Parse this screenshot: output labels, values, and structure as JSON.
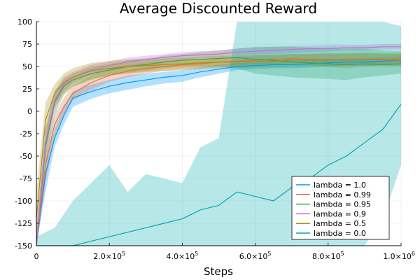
{
  "chart_data": {
    "type": "line",
    "title": "Average Discounted Reward",
    "xlabel": "Steps",
    "ylabel": "",
    "xlim": [
      0,
      1000000
    ],
    "ylim": [
      -150,
      100
    ],
    "grid": true,
    "legend_position": "bottom-right",
    "x_ticks": [
      {
        "value": 0,
        "mantissa": "0",
        "exponent": ""
      },
      {
        "value": 200000,
        "mantissa": "2.0×10",
        "exponent": "5"
      },
      {
        "value": 400000,
        "mantissa": "4.0×10",
        "exponent": "5"
      },
      {
        "value": 600000,
        "mantissa": "6.0×10",
        "exponent": "5"
      },
      {
        "value": 800000,
        "mantissa": "8.0×10",
        "exponent": "5"
      },
      {
        "value": 1000000,
        "mantissa": "1.0×10",
        "exponent": "6"
      }
    ],
    "y_ticks": [
      {
        "value": -150,
        "label": "-150"
      },
      {
        "value": -125,
        "label": "-125"
      },
      {
        "value": -100,
        "label": "-100"
      },
      {
        "value": -75,
        "label": "-75"
      },
      {
        "value": -50,
        "label": "-50"
      },
      {
        "value": -25,
        "label": "-25"
      },
      {
        "value": 0,
        "label": "0"
      },
      {
        "value": 25,
        "label": "25"
      },
      {
        "value": 50,
        "label": "50"
      },
      {
        "value": 75,
        "label": "75"
      },
      {
        "value": 100,
        "label": "100"
      }
    ],
    "series": [
      {
        "name": "lambda = 1.0",
        "color": "#009af9",
        "x": [
          0,
          25000,
          50000,
          75000,
          100000,
          150000,
          200000,
          250000,
          300000,
          350000,
          400000,
          450000,
          500000,
          550000,
          600000,
          650000,
          700000,
          750000,
          800000,
          850000,
          900000,
          950000,
          1000000
        ],
        "values": [
          -150,
          -70,
          -30,
          -5,
          15,
          22,
          28,
          32,
          35,
          38,
          40,
          44,
          47,
          50,
          51,
          52,
          52,
          53,
          54,
          55,
          55,
          56,
          57
        ],
        "lower": [
          -150,
          -90,
          -40,
          -15,
          5,
          14,
          20,
          24,
          28,
          31,
          33,
          38,
          42,
          46,
          47,
          48,
          48,
          49,
          50,
          51,
          51,
          52,
          53
        ],
        "upper": [
          -140,
          -55,
          -20,
          5,
          22,
          30,
          35,
          40,
          42,
          44,
          46,
          49,
          52,
          54,
          55,
          56,
          56,
          57,
          58,
          59,
          59,
          60,
          60
        ]
      },
      {
        "name": "lambda = 0.99",
        "color": "#e26f46",
        "x": [
          0,
          25000,
          50000,
          75000,
          100000,
          150000,
          200000,
          250000,
          300000,
          350000,
          400000,
          450000,
          500000,
          550000,
          600000,
          650000,
          700000,
          750000,
          800000,
          850000,
          900000,
          950000,
          1000000
        ],
        "values": [
          -150,
          -60,
          -15,
          5,
          20,
          32,
          40,
          45,
          48,
          50,
          52,
          53,
          55,
          56,
          57,
          58,
          59,
          58,
          58,
          57,
          58,
          57,
          57
        ],
        "lower": [
          -150,
          -80,
          -28,
          -5,
          12,
          24,
          33,
          38,
          42,
          45,
          47,
          48,
          50,
          51,
          52,
          53,
          54,
          52,
          50,
          48,
          50,
          50,
          50
        ],
        "upper": [
          -140,
          -45,
          -5,
          15,
          28,
          40,
          47,
          52,
          54,
          56,
          58,
          58,
          60,
          61,
          62,
          63,
          64,
          64,
          65,
          64,
          65,
          64,
          64
        ]
      },
      {
        "name": "lambda = 0.95",
        "color": "#3da44d",
        "x": [
          0,
          25000,
          50000,
          75000,
          100000,
          150000,
          200000,
          250000,
          300000,
          350000,
          400000,
          450000,
          500000,
          550000,
          600000,
          650000,
          700000,
          750000,
          800000,
          850000,
          900000,
          950000,
          1000000
        ],
        "values": [
          -150,
          -40,
          10,
          28,
          35,
          42,
          46,
          50,
          52,
          55,
          57,
          58,
          59,
          60,
          58,
          57,
          55,
          54,
          53,
          52,
          53,
          52,
          53
        ],
        "lower": [
          -150,
          -60,
          -5,
          18,
          27,
          35,
          40,
          43,
          45,
          48,
          50,
          50,
          50,
          48,
          42,
          40,
          38,
          37,
          36,
          35,
          38,
          40,
          42
        ],
        "upper": [
          -130,
          -20,
          22,
          36,
          42,
          50,
          53,
          57,
          59,
          62,
          64,
          66,
          68,
          70,
          72,
          72,
          72,
          71,
          70,
          70,
          70,
          68,
          67
        ]
      },
      {
        "name": "lambda = 0.9",
        "color": "#c271d2",
        "x": [
          0,
          25000,
          50000,
          75000,
          100000,
          150000,
          200000,
          250000,
          300000,
          350000,
          400000,
          450000,
          500000,
          550000,
          600000,
          650000,
          700000,
          750000,
          800000,
          850000,
          900000,
          950000,
          1000000
        ],
        "values": [
          -150,
          -35,
          12,
          30,
          38,
          46,
          51,
          55,
          58,
          60,
          62,
          63,
          64,
          66,
          67,
          68,
          69,
          70,
          70,
          71,
          71,
          72,
          72
        ],
        "lower": [
          -150,
          -50,
          2,
          22,
          32,
          40,
          46,
          50,
          53,
          56,
          58,
          59,
          60,
          62,
          63,
          64,
          65,
          66,
          67,
          68,
          68,
          69,
          69
        ],
        "upper": [
          -130,
          -20,
          22,
          38,
          44,
          52,
          56,
          60,
          62,
          64,
          66,
          67,
          68,
          70,
          71,
          72,
          73,
          73,
          74,
          74,
          74,
          75,
          75
        ]
      },
      {
        "name": "lambda = 0.5",
        "color": "#ac8d18",
        "x": [
          0,
          25000,
          50000,
          75000,
          100000,
          150000,
          200000,
          250000,
          300000,
          350000,
          400000,
          450000,
          500000,
          550000,
          600000,
          650000,
          700000,
          750000,
          800000,
          850000,
          900000,
          950000,
          1000000
        ],
        "values": [
          -120,
          -10,
          20,
          32,
          38,
          45,
          48,
          50,
          51,
          52,
          53,
          54,
          55,
          55,
          56,
          56,
          57,
          57,
          57,
          58,
          58,
          58,
          58
        ],
        "lower": [
          -150,
          -30,
          5,
          20,
          28,
          36,
          40,
          42,
          44,
          45,
          46,
          47,
          48,
          48,
          49,
          49,
          50,
          50,
          50,
          51,
          51,
          51,
          51
        ],
        "upper": [
          -90,
          10,
          30,
          42,
          48,
          54,
          56,
          58,
          58,
          59,
          60,
          61,
          62,
          62,
          63,
          63,
          64,
          64,
          64,
          65,
          65,
          65,
          65
        ]
      },
      {
        "name": "lambda = 0.0",
        "color": "#00a9ad",
        "x": [
          0,
          50000,
          100000,
          150000,
          200000,
          250000,
          300000,
          350000,
          400000,
          450000,
          500000,
          550000,
          600000,
          650000,
          700000,
          750000,
          800000,
          850000,
          900000,
          950000,
          1000000
        ],
        "values": [
          -150,
          -150,
          -150,
          -145,
          -140,
          -135,
          -130,
          -125,
          -120,
          -110,
          -105,
          -90,
          -95,
          -100,
          -85,
          -75,
          -60,
          -50,
          -35,
          -20,
          8
        ],
        "lower": [
          -150,
          -150,
          -150,
          -150,
          -150,
          -150,
          -150,
          -150,
          -150,
          -150,
          -150,
          -150,
          -150,
          -150,
          -150,
          -150,
          -150,
          -150,
          -150,
          -120,
          -60
        ],
        "upper": [
          -140,
          -130,
          -100,
          -80,
          -60,
          -90,
          -70,
          -75,
          -80,
          -40,
          -30,
          100,
          100,
          100,
          100,
          100,
          100,
          100,
          100,
          100,
          95
        ]
      }
    ]
  }
}
